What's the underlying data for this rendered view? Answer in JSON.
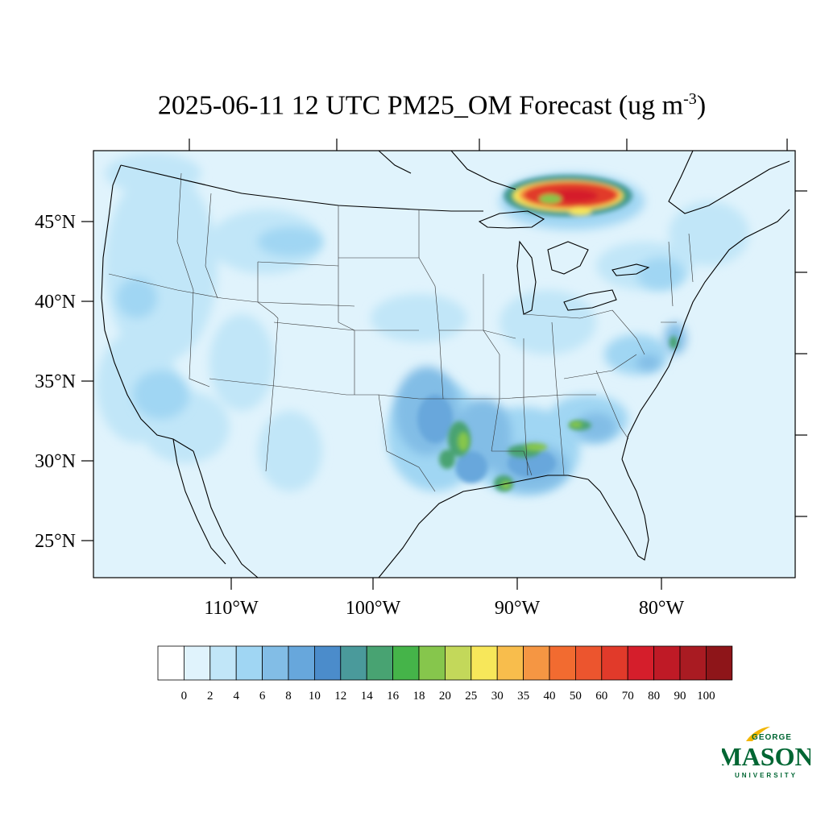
{
  "title": {
    "date": "2025-06-11",
    "hour": "12 UTC",
    "variable": "PM25_OM",
    "kind": "Forecast",
    "units_base": "(ug m",
    "units_exp": "-3",
    "units_close": ")"
  },
  "axes": {
    "lat_labels": [
      "45°N",
      "40°N",
      "35°N",
      "30°N",
      "25°N"
    ],
    "lon_labels": [
      "110°W",
      "100°W",
      "90°W",
      "80°W"
    ]
  },
  "colorbar": {
    "labels": [
      "0",
      "2",
      "4",
      "6",
      "8",
      "10",
      "12",
      "14",
      "16",
      "18",
      "20",
      "25",
      "30",
      "35",
      "40",
      "50",
      "60",
      "70",
      "80",
      "90",
      "100"
    ],
    "colors": [
      "#ffffff",
      "#e0f3fc",
      "#c1e6f8",
      "#a0d6f3",
      "#82bde6",
      "#67a7dc",
      "#4b8ccb",
      "#4a9a9b",
      "#48a372",
      "#45b449",
      "#86c64c",
      "#c3d85a",
      "#f7e75a",
      "#f8bd4c",
      "#f59643",
      "#f26b30",
      "#ec552e",
      "#e13a2a",
      "#d51e2b",
      "#bf1a26",
      "#a91b22",
      "#8e1519"
    ]
  },
  "field_colors": {
    "background": "#e0f3fc",
    "light": "#c1e6f8",
    "medium": "#a0d6f3",
    "deep": "#82bde6",
    "dark": "#67a7dc",
    "teal": "#4a9a9b",
    "green": "#48a372",
    "lime": "#86c64c",
    "yellow": "#f7e75a",
    "orange": "#f59643",
    "red": "#e13a2a",
    "darkred": "#d51e2b"
  },
  "logo": {
    "top": "GEORGE",
    "main": "MASON",
    "bottom": "UNIVERSITY",
    "color": "#006633",
    "accent": "#f2b600"
  }
}
